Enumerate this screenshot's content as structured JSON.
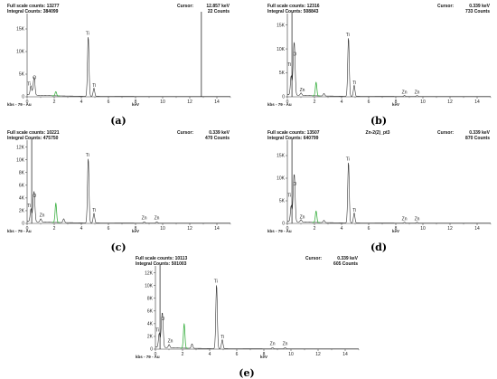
{
  "colors": {
    "spectrum": "#222222",
    "highlight": "#3cb043",
    "cursor_line": "#111111",
    "axis": "#333333"
  },
  "chart_data": [
    {
      "type": "line",
      "panel_label": "(a)",
      "full_scale_counts": "Full scale counts: 13277",
      "integral_counts": "Integral Counts: 384099",
      "cursor": "Cursor:",
      "cursor_kev": "12.857 keV",
      "cursor_counts": "22 Counts",
      "cursor_line_x": 12.857,
      "footer_left": "kbs - 79 - Au",
      "xlabel": "keV",
      "xlim": [
        0,
        15
      ],
      "xticks": [
        "0",
        "2",
        "4",
        "6",
        "8",
        "10",
        "12",
        "14"
      ],
      "ylim": [
        0,
        18000
      ],
      "yticks": [
        {
          "v": 0,
          "t": "0"
        },
        {
          "v": 5000,
          "t": "5K"
        },
        {
          "v": 10000,
          "t": "10K"
        },
        {
          "v": 15000,
          "t": "15K"
        }
      ],
      "peaks": [
        {
          "x": 0.28,
          "y": 2000,
          "hl": false
        },
        {
          "x": 0.45,
          "y": 1200,
          "hl": false
        },
        {
          "x": 0.53,
          "y": 3500,
          "hl": false
        },
        {
          "x": 2.12,
          "y": 900,
          "hl": true
        },
        {
          "x": 4.51,
          "y": 13277,
          "hl": false
        },
        {
          "x": 4.93,
          "y": 1800,
          "hl": false
        }
      ],
      "annotations": [
        {
          "text": "O",
          "x": 0.55,
          "y": 3700
        },
        {
          "text": "Ti",
          "x": 0.15,
          "y": 2300
        },
        {
          "text": "Ti",
          "x": 4.45,
          "y": 13500
        },
        {
          "text": "Ti",
          "x": 4.95,
          "y": 2000
        }
      ]
    },
    {
      "type": "line",
      "panel_label": "(b)",
      "full_scale_counts": "Full scale counts: 12316",
      "integral_counts": "Integral Counts: 508843",
      "cursor": "Cursor:",
      "cursor_kev": "0.339 keV",
      "cursor_counts": "733 Counts",
      "cursor_line_x": 0.339,
      "footer_left": "kbs - 79 - Au",
      "xlabel": "keV",
      "xlim": [
        0,
        15
      ],
      "xticks": [
        "0",
        "2",
        "4",
        "6",
        "8",
        "10",
        "12",
        "14"
      ],
      "ylim": [
        0,
        17000
      ],
      "yticks": [
        {
          "v": 0,
          "t": "0"
        },
        {
          "v": 5000,
          "t": "5K"
        },
        {
          "v": 10000,
          "t": "10K"
        },
        {
          "v": 15000,
          "t": "15K"
        }
      ],
      "peaks": [
        {
          "x": 0.28,
          "y": 4000,
          "hl": false
        },
        {
          "x": 0.45,
          "y": 6000,
          "hl": false
        },
        {
          "x": 0.53,
          "y": 8200,
          "hl": false
        },
        {
          "x": 1.01,
          "y": 500,
          "hl": false
        },
        {
          "x": 2.12,
          "y": 2800,
          "hl": true
        },
        {
          "x": 2.7,
          "y": 500,
          "hl": false
        },
        {
          "x": 4.51,
          "y": 12316,
          "hl": false
        },
        {
          "x": 4.93,
          "y": 2300,
          "hl": false
        },
        {
          "x": 8.64,
          "y": 200,
          "hl": false
        },
        {
          "x": 9.57,
          "y": 200,
          "hl": false
        }
      ],
      "annotations": [
        {
          "text": "O",
          "x": 0.55,
          "y": 8400
        },
        {
          "text": "Ti",
          "x": 0.15,
          "y": 6200
        },
        {
          "text": "Zn",
          "x": 1.1,
          "y": 900
        },
        {
          "text": "Ti",
          "x": 4.45,
          "y": 12500
        },
        {
          "text": "Ti",
          "x": 4.95,
          "y": 2500
        },
        {
          "text": "Zn",
          "x": 8.64,
          "y": 500
        },
        {
          "text": "Zn",
          "x": 9.57,
          "y": 500
        }
      ]
    },
    {
      "type": "line",
      "panel_label": "(c)",
      "full_scale_counts": "Full scale counts: 10221",
      "integral_counts": "Integral Counts: 475750",
      "cursor": "Cursor:",
      "cursor_kev": "0.339 keV",
      "cursor_counts": "470 Counts",
      "cursor_line_x": 0.339,
      "footer_left": "kbs - 79 - Au",
      "xlabel": "keV",
      "xlim": [
        0,
        15
      ],
      "xticks": [
        "0",
        "2",
        "4",
        "6",
        "8",
        "10",
        "12",
        "14"
      ],
      "ylim": [
        0,
        12800
      ],
      "yticks": [
        {
          "v": 0,
          "t": "0"
        },
        {
          "v": 2000,
          "t": "2K"
        },
        {
          "v": 4000,
          "t": "4K"
        },
        {
          "v": 6000,
          "t": "6K"
        },
        {
          "v": 8000,
          "t": "8K"
        },
        {
          "v": 10000,
          "t": "10K"
        },
        {
          "v": 12000,
          "t": "12K"
        }
      ],
      "peaks": [
        {
          "x": 0.28,
          "y": 2000,
          "hl": false
        },
        {
          "x": 0.45,
          "y": 2200,
          "hl": false
        },
        {
          "x": 0.53,
          "y": 3800,
          "hl": false
        },
        {
          "x": 1.01,
          "y": 500,
          "hl": false
        },
        {
          "x": 2.12,
          "y": 3000,
          "hl": true
        },
        {
          "x": 2.7,
          "y": 600,
          "hl": false
        },
        {
          "x": 4.51,
          "y": 10221,
          "hl": false
        },
        {
          "x": 4.93,
          "y": 1500,
          "hl": false
        },
        {
          "x": 8.64,
          "y": 200,
          "hl": false
        },
        {
          "x": 9.57,
          "y": 200,
          "hl": false
        }
      ],
      "annotations": [
        {
          "text": "O",
          "x": 0.55,
          "y": 4000
        },
        {
          "text": "Ti",
          "x": 0.15,
          "y": 2400
        },
        {
          "text": "Zn",
          "x": 1.1,
          "y": 900
        },
        {
          "text": "Ti",
          "x": 4.45,
          "y": 10400
        },
        {
          "text": "Ti",
          "x": 4.95,
          "y": 1700
        },
        {
          "text": "Zn",
          "x": 8.64,
          "y": 500
        },
        {
          "text": "Zn",
          "x": 9.57,
          "y": 500
        }
      ]
    },
    {
      "type": "line",
      "panel_label": "(d)",
      "full_scale_counts": "Full scale counts: 13507",
      "integral_counts": "Integral Counts: 640799",
      "spectrum_name": "Zn-2(2)_pt3",
      "cursor": "Cursor:",
      "cursor_kev": "0.339 keV",
      "cursor_counts": "870 Counts",
      "cursor_line_x": 0.339,
      "footer_left": "kbs - 79 - Au",
      "xlabel": "keV",
      "xlim": [
        0,
        15
      ],
      "xticks": [
        "0",
        "2",
        "4",
        "6",
        "8",
        "10",
        "12",
        "14"
      ],
      "ylim": [
        0,
        18000
      ],
      "yticks": [
        {
          "v": 0,
          "t": "0"
        },
        {
          "v": 5000,
          "t": "5K"
        },
        {
          "v": 10000,
          "t": "10K"
        },
        {
          "v": 15000,
          "t": "15K"
        }
      ],
      "peaks": [
        {
          "x": 0.28,
          "y": 3500,
          "hl": false
        },
        {
          "x": 0.45,
          "y": 5500,
          "hl": false
        },
        {
          "x": 0.53,
          "y": 8000,
          "hl": false
        },
        {
          "x": 1.01,
          "y": 500,
          "hl": false
        },
        {
          "x": 2.12,
          "y": 2500,
          "hl": true
        },
        {
          "x": 2.7,
          "y": 500,
          "hl": false
        },
        {
          "x": 4.51,
          "y": 13507,
          "hl": false
        },
        {
          "x": 4.93,
          "y": 2200,
          "hl": false
        },
        {
          "x": 8.64,
          "y": 200,
          "hl": false
        },
        {
          "x": 9.57,
          "y": 200,
          "hl": false
        }
      ],
      "annotations": [
        {
          "text": "O",
          "x": 0.55,
          "y": 8200
        },
        {
          "text": "Ti",
          "x": 0.15,
          "y": 5700
        },
        {
          "text": "Zn",
          "x": 1.1,
          "y": 900
        },
        {
          "text": "Ti",
          "x": 4.45,
          "y": 13700
        },
        {
          "text": "Ti",
          "x": 4.95,
          "y": 2400
        },
        {
          "text": "Zn",
          "x": 8.64,
          "y": 500
        },
        {
          "text": "Zn",
          "x": 9.57,
          "y": 500
        }
      ]
    },
    {
      "type": "line",
      "panel_label": "(e)",
      "full_scale_counts": "Full scale counts: 10113",
      "integral_counts": "Integral Counts: 501003",
      "cursor": "Cursor:",
      "cursor_kev": "0.339 keV",
      "cursor_counts": "605 Counts",
      "cursor_line_x": 0.339,
      "footer_left": "kbs - 79 - Au",
      "xlabel": "keV",
      "xlim": [
        0,
        15
      ],
      "xticks": [
        "0",
        "2",
        "4",
        "6",
        "8",
        "10",
        "12",
        "14"
      ],
      "ylim": [
        0,
        12800
      ],
      "yticks": [
        {
          "v": 0,
          "t": "0"
        },
        {
          "v": 2000,
          "t": "2K"
        },
        {
          "v": 4000,
          "t": "4K"
        },
        {
          "v": 6000,
          "t": "6K"
        },
        {
          "v": 8000,
          "t": "8K"
        },
        {
          "v": 10000,
          "t": "10K"
        },
        {
          "v": 12000,
          "t": "12K"
        }
      ],
      "peaks": [
        {
          "x": 0.28,
          "y": 2200,
          "hl": false
        },
        {
          "x": 0.45,
          "y": 2800,
          "hl": false
        },
        {
          "x": 0.53,
          "y": 4200,
          "hl": false
        },
        {
          "x": 1.01,
          "y": 500,
          "hl": false
        },
        {
          "x": 2.12,
          "y": 3800,
          "hl": true
        },
        {
          "x": 2.7,
          "y": 700,
          "hl": false
        },
        {
          "x": 4.51,
          "y": 10113,
          "hl": false
        },
        {
          "x": 4.93,
          "y": 1400,
          "hl": false
        },
        {
          "x": 8.64,
          "y": 200,
          "hl": false
        },
        {
          "x": 9.57,
          "y": 200,
          "hl": false
        }
      ],
      "annotations": [
        {
          "text": "O",
          "x": 0.55,
          "y": 4400
        },
        {
          "text": "Ti",
          "x": 0.15,
          "y": 2600
        },
        {
          "text": "Zn",
          "x": 1.1,
          "y": 900
        },
        {
          "text": "Ti",
          "x": 4.45,
          "y": 10300
        },
        {
          "text": "Ti",
          "x": 4.95,
          "y": 1600
        },
        {
          "text": "Zn",
          "x": 8.64,
          "y": 500
        },
        {
          "text": "Zn",
          "x": 9.57,
          "y": 500
        }
      ]
    }
  ]
}
